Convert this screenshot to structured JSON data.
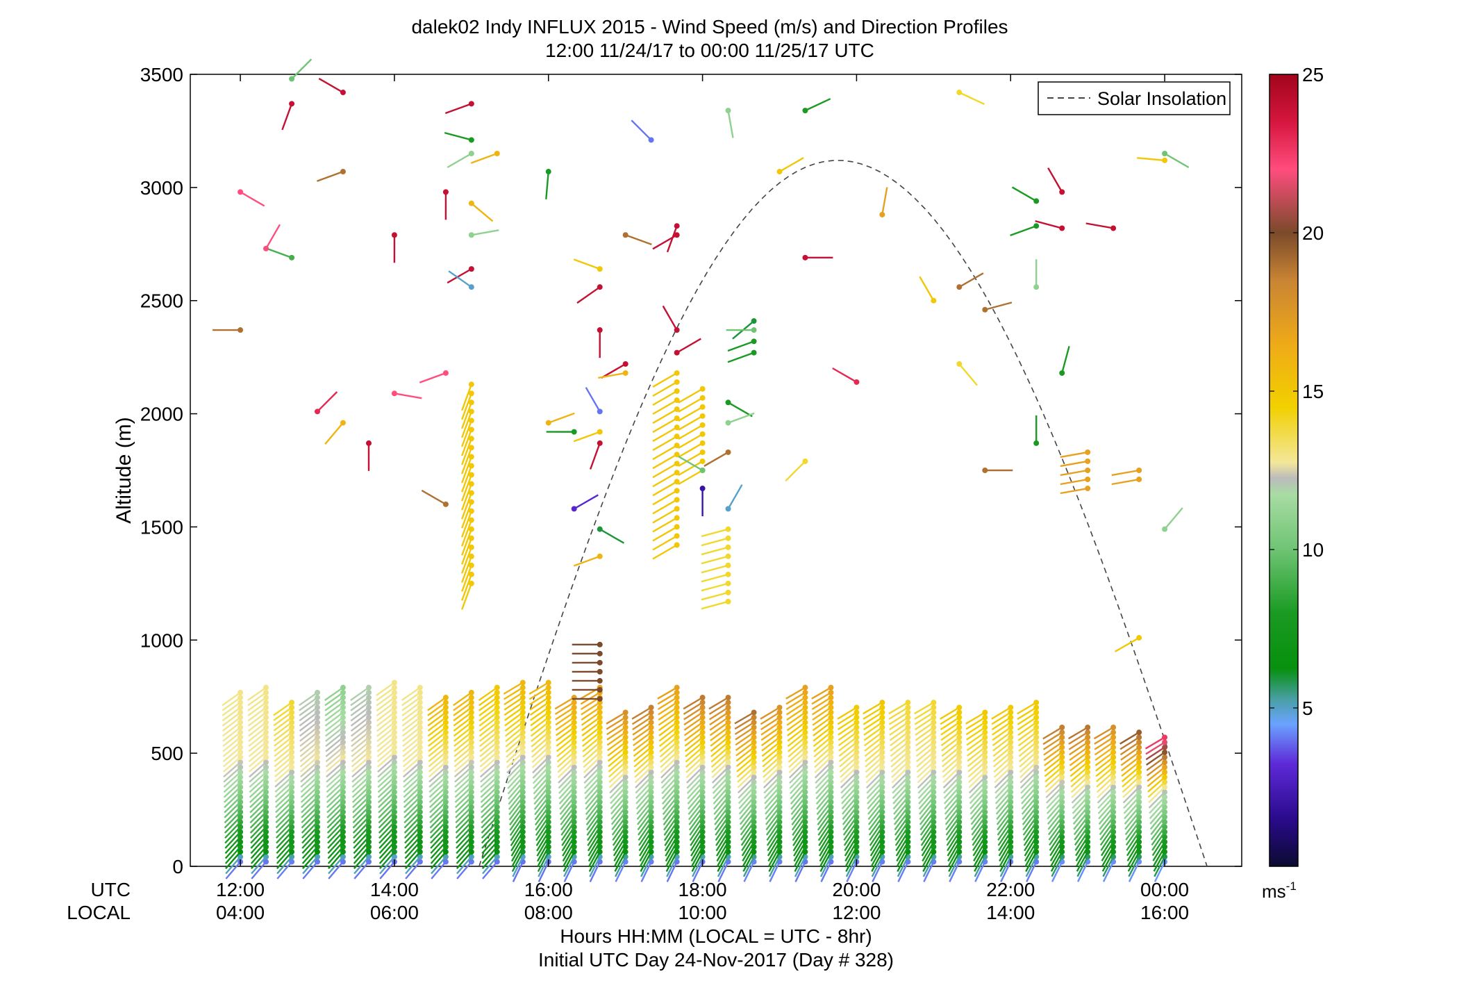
{
  "figure": {
    "title_line1": "dalek02 Indy INFLUX 2015 - Wind Speed (m/s) and Direction Profiles",
    "title_line2": "12:00 11/24/17 to 00:00 11/25/17  UTC",
    "xlabel_line1": "Hours HH:MM  (LOCAL = UTC - 8hr)",
    "xlabel_line2": "Initial UTC Day 24-Nov-2017 (Day # 328)",
    "row_label_utc": "UTC",
    "row_label_local": "LOCAL",
    "legend_label": "Solar Insolation",
    "colorbar_unit": "ms",
    "colorbar_unit_exp": "-1"
  },
  "chart_data": {
    "type": "wind_barbs_profile",
    "ylabel": "Altitude (m)",
    "ylim": [
      0,
      3500
    ],
    "yticks": [
      0,
      500,
      1000,
      1500,
      2000,
      2500,
      3000,
      3500
    ],
    "xlim_hours_utc": [
      11.35,
      25.0
    ],
    "x_ticks": [
      {
        "h": 12,
        "utc": "12:00",
        "local": "04:00"
      },
      {
        "h": 14,
        "utc": "14:00",
        "local": "06:00"
      },
      {
        "h": 16,
        "utc": "16:00",
        "local": "08:00"
      },
      {
        "h": 18,
        "utc": "18:00",
        "local": "10:00"
      },
      {
        "h": 20,
        "utc": "20:00",
        "local": "12:00"
      },
      {
        "h": 22,
        "utc": "22:00",
        "local": "14:00"
      },
      {
        "h": 24,
        "utc": "00:00",
        "local": "16:00"
      }
    ],
    "colorbar": {
      "min": 0,
      "max": 25,
      "ticks": [
        5,
        10,
        15,
        20,
        25
      ]
    },
    "grid": false,
    "legend_position": "top-right",
    "solar_insolation": {
      "start_hour": 15.1,
      "peak_hour": 19.75,
      "end_hour": 24.55,
      "peak_altitude_m": 3120,
      "style": "dashed"
    },
    "profile_hours": [
      12.0,
      12.333,
      12.667,
      13.0,
      13.333,
      13.667,
      14.0,
      14.333,
      14.667,
      15.0,
      15.333,
      15.667,
      16.0,
      16.333,
      16.667,
      17.0,
      17.333,
      17.667,
      18.0,
      18.333,
      18.667,
      19.0,
      19.333,
      19.667,
      20.0,
      20.333,
      20.667,
      21.0,
      21.333,
      21.667,
      22.0,
      22.333,
      22.667,
      23.0,
      23.333,
      23.667,
      24.0
    ],
    "profile_tops_m": [
      780,
      790,
      730,
      770,
      790,
      790,
      830,
      790,
      760,
      780,
      790,
      830,
      830,
      760,
      790,
      690,
      720,
      790,
      760,
      760,
      680,
      720,
      790,
      790,
      720,
      730,
      730,
      730,
      720,
      690,
      720,
      740,
      630,
      620,
      620,
      610,
      580
    ],
    "profile_upper_speed_ms": [
      13,
      13,
      14,
      12,
      11,
      12,
      13,
      13,
      16,
      16,
      15,
      16,
      16,
      17,
      17,
      18,
      19,
      17,
      19,
      19,
      19,
      18,
      17,
      17,
      15,
      15,
      14,
      14,
      15,
      15,
      15,
      15,
      19,
      19,
      18,
      20,
      23
    ],
    "isolated_barbs": [
      {
        "h": 12.0,
        "alt": 2370,
        "spd": 19,
        "dir": 270
      },
      {
        "h": 12.0,
        "alt": 2980,
        "spd": 22,
        "dir": 120
      },
      {
        "h": 12.667,
        "alt": 3370,
        "spd": 24,
        "dir": 200
      },
      {
        "h": 12.667,
        "alt": 2690,
        "spd": 9,
        "dir": 290
      },
      {
        "h": 12.333,
        "alt": 2730,
        "spd": 22,
        "dir": 30
      },
      {
        "h": 13.333,
        "alt": 3420,
        "spd": 24,
        "dir": 300
      },
      {
        "h": 13.333,
        "alt": 3070,
        "spd": 19,
        "dir": 250
      },
      {
        "h": 13.0,
        "alt": 2010,
        "spd": 23,
        "dir": 45
      },
      {
        "h": 13.333,
        "alt": 1960,
        "spd": 16,
        "dir": 220
      },
      {
        "h": 13.667,
        "alt": 1870,
        "spd": 24,
        "dir": 180
      },
      {
        "h": 14.0,
        "alt": 2790,
        "spd": 24,
        "dir": 180
      },
      {
        "h": 14.0,
        "alt": 2090,
        "spd": 22,
        "dir": 100
      },
      {
        "h": 14.667,
        "alt": 2980,
        "spd": 24,
        "dir": 180
      },
      {
        "h": 14.667,
        "alt": 2180,
        "spd": 22,
        "dir": 250
      },
      {
        "h": 14.667,
        "alt": 1600,
        "spd": 19,
        "dir": 300
      },
      {
        "h": 15.0,
        "alt": 3370,
        "spd": 24,
        "dir": 250
      },
      {
        "h": 15.0,
        "alt": 3210,
        "spd": 8,
        "dir": 285
      },
      {
        "h": 15.0,
        "alt": 3150,
        "spd": 11,
        "dir": 240
      },
      {
        "h": 15.0,
        "alt": 2930,
        "spd": 16,
        "dir": 130
      },
      {
        "h": 15.0,
        "alt": 2790,
        "spd": 11,
        "dir": 80
      },
      {
        "h": 15.0,
        "alt": 2640,
        "spd": 24,
        "dir": 240
      },
      {
        "h": 15.0,
        "alt": 2560,
        "spd": 5,
        "dir": 305
      },
      {
        "h": 15.333,
        "alt": 3150,
        "spd": 16,
        "dir": 250
      },
      {
        "h": 16.0,
        "alt": 3070,
        "spd": 8,
        "dir": 185
      },
      {
        "h": 16.0,
        "alt": 1960,
        "spd": 16,
        "dir": 70
      },
      {
        "h": 16.333,
        "alt": 1920,
        "spd": 8,
        "dir": 270
      },
      {
        "h": 16.667,
        "alt": 2640,
        "spd": 15,
        "dir": 290
      },
      {
        "h": 16.667,
        "alt": 2560,
        "spd": 24,
        "dir": 235
      },
      {
        "h": 16.667,
        "alt": 2370,
        "spd": 24,
        "dir": 180
      },
      {
        "h": 16.667,
        "alt": 2010,
        "spd": 4,
        "dir": 330
      },
      {
        "h": 16.667,
        "alt": 1920,
        "spd": 15,
        "dir": 250
      },
      {
        "h": 16.667,
        "alt": 1870,
        "spd": 24,
        "dir": 200
      },
      {
        "h": 16.333,
        "alt": 1580,
        "spd": 3,
        "dir": 60
      },
      {
        "h": 16.667,
        "alt": 1490,
        "spd": 6,
        "dir": 120
      },
      {
        "h": 16.667,
        "alt": 1370,
        "spd": 16,
        "dir": 250
      },
      {
        "h": 17.0,
        "alt": 2790,
        "spd": 19,
        "dir": 110
      },
      {
        "h": 17.0,
        "alt": 2220,
        "spd": 24,
        "dir": 240
      },
      {
        "h": 17.0,
        "alt": 2180,
        "spd": 16,
        "dir": 260
      },
      {
        "h": 17.333,
        "alt": 3210,
        "spd": 4,
        "dir": 315
      },
      {
        "h": 17.667,
        "alt": 2830,
        "spd": 24,
        "dir": 200
      },
      {
        "h": 17.667,
        "alt": 2790,
        "spd": 24,
        "dir": 240
      },
      {
        "h": 17.667,
        "alt": 2370,
        "spd": 24,
        "dir": 330
      },
      {
        "h": 17.667,
        "alt": 2270,
        "spd": 24,
        "dir": 60
      },
      {
        "h": 18.333,
        "alt": 1830,
        "spd": 19,
        "dir": 240
      },
      {
        "h": 18.0,
        "alt": 1750,
        "spd": 10,
        "dir": 300
      },
      {
        "h": 18.0,
        "alt": 1670,
        "spd": 2,
        "dir": 180
      },
      {
        "h": 18.333,
        "alt": 1580,
        "spd": 5,
        "dir": 30
      },
      {
        "h": 18.333,
        "alt": 3340,
        "spd": 11,
        "dir": 170
      },
      {
        "h": 18.667,
        "alt": 2410,
        "spd": 6,
        "dir": 230
      },
      {
        "h": 18.667,
        "alt": 2370,
        "spd": 10,
        "dir": 270
      },
      {
        "h": 18.667,
        "alt": 2320,
        "spd": 8,
        "dir": 250
      },
      {
        "h": 18.667,
        "alt": 2270,
        "spd": 8,
        "dir": 250
      },
      {
        "h": 18.333,
        "alt": 2050,
        "spd": 8,
        "dir": 120
      },
      {
        "h": 18.333,
        "alt": 1960,
        "spd": 11,
        "dir": 70
      },
      {
        "h": 19.0,
        "alt": 3070,
        "spd": 15,
        "dir": 60
      },
      {
        "h": 19.333,
        "alt": 2690,
        "spd": 24,
        "dir": 90
      },
      {
        "h": 19.333,
        "alt": 3340,
        "spd": 8,
        "dir": 65
      },
      {
        "h": 19.333,
        "alt": 1790,
        "spd": 14,
        "dir": 225
      },
      {
        "h": 20.0,
        "alt": 2140,
        "spd": 23,
        "dir": 300
      },
      {
        "h": 20.333,
        "alt": 2880,
        "spd": 17,
        "dir": 10
      },
      {
        "h": 21.0,
        "alt": 2500,
        "spd": 15,
        "dir": 330
      },
      {
        "h": 21.333,
        "alt": 3420,
        "spd": 14,
        "dir": 115
      },
      {
        "h": 21.333,
        "alt": 2560,
        "spd": 19,
        "dir": 60
      },
      {
        "h": 21.667,
        "alt": 2460,
        "spd": 19,
        "dir": 75
      },
      {
        "h": 21.333,
        "alt": 2220,
        "spd": 14,
        "dir": 140
      },
      {
        "h": 21.667,
        "alt": 1750,
        "spd": 19,
        "dir": 90
      },
      {
        "h": 22.333,
        "alt": 2940,
        "spd": 8,
        "dir": 300
      },
      {
        "h": 22.333,
        "alt": 2830,
        "spd": 8,
        "dir": 250
      },
      {
        "h": 22.333,
        "alt": 2560,
        "spd": 11,
        "dir": 0
      },
      {
        "h": 22.333,
        "alt": 1870,
        "spd": 8,
        "dir": 0
      },
      {
        "h": 22.667,
        "alt": 2980,
        "spd": 24,
        "dir": 330
      },
      {
        "h": 22.667,
        "alt": 2820,
        "spd": 24,
        "dir": 285
      },
      {
        "h": 22.667,
        "alt": 2180,
        "spd": 8,
        "dir": 15
      },
      {
        "h": 23.333,
        "alt": 2820,
        "spd": 24,
        "dir": 280
      },
      {
        "h": 23.667,
        "alt": 1010,
        "spd": 15,
        "dir": 240
      },
      {
        "h": 24.0,
        "alt": 3150,
        "spd": 10,
        "dir": 120
      },
      {
        "h": 24.0,
        "alt": 3120,
        "spd": 15,
        "dir": 275
      },
      {
        "h": 24.0,
        "alt": 1490,
        "spd": 11,
        "dir": 40
      },
      {
        "h": 12.667,
        "alt": 3480,
        "spd": 10,
        "dir": 45
      }
    ],
    "isolated_columns": [
      {
        "h": 15.0,
        "alt_from": 1250,
        "alt_to": 2140,
        "spd": 15,
        "dir": 200
      },
      {
        "h": 16.667,
        "alt_from": 740,
        "alt_to": 1000,
        "spd": 20,
        "dir": 270
      },
      {
        "h": 17.667,
        "alt_from": 1420,
        "alt_to": 2180,
        "spd": 15,
        "dir": 240
      },
      {
        "h": 18.0,
        "alt_from": 1750,
        "alt_to": 2140,
        "spd": 15,
        "dir": 240
      },
      {
        "h": 18.333,
        "alt_from": 1170,
        "alt_to": 1490,
        "spd": 14,
        "dir": 255
      },
      {
        "h": 23.0,
        "alt_from": 1670,
        "alt_to": 1830,
        "spd": 17,
        "dir": 260
      },
      {
        "h": 23.667,
        "alt_from": 1710,
        "alt_to": 1750,
        "spd": 17,
        "dir": 260
      }
    ]
  },
  "colors": {
    "background": "#ffffff",
    "axis": "#000000",
    "insolation_line": "#444444"
  }
}
